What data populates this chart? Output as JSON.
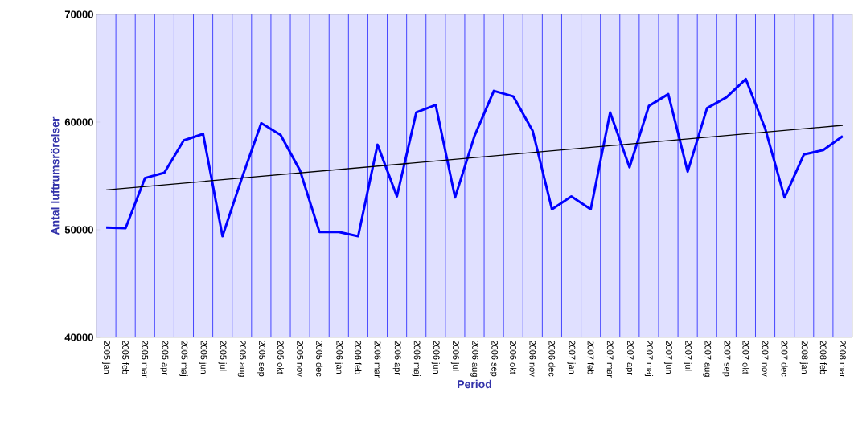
{
  "chart_data": {
    "type": "line",
    "xlabel": "Period",
    "ylabel": "Antal luftrumsrörelser",
    "categories": [
      "2005 jan",
      "2005 feb",
      "2005 mar",
      "2005 apr",
      "2005 maj",
      "2005 jun",
      "2005 jul",
      "2005 aug",
      "2005 sep",
      "2005 okt",
      "2005 nov",
      "2005 dec",
      "2006 jan",
      "2006 feb",
      "2006 mar",
      "2006 apr",
      "2006 maj",
      "2006 jun",
      "2006 jul",
      "2006 aug",
      "2006 sep",
      "2006 okt",
      "2006 nov",
      "2006 dec",
      "2007 jan",
      "2007 feb",
      "2007 mar",
      "2007 apr",
      "2007 maj",
      "2007 jun",
      "2007 jul",
      "2007 aug",
      "2007 sep",
      "2007 okt",
      "2007 nov",
      "2007 dec",
      "2008 jan",
      "2008 feb",
      "2008 mar"
    ],
    "series": [
      {
        "color": "#0000ff",
        "values": [
          50200,
          50150,
          54800,
          55300,
          58300,
          58900,
          49400,
          54800,
          59900,
          58800,
          55500,
          49800,
          49800,
          49400,
          57900,
          53100,
          60900,
          61600,
          53000,
          58700,
          62900,
          62400,
          59200,
          51900,
          53100,
          51900,
          60900,
          55800,
          61500,
          62600,
          55400,
          61300,
          62300,
          64000,
          59400,
          53000,
          57000,
          57400,
          58700
        ]
      },
      {
        "color": "#000000",
        "x": [
          "2005 jan",
          "2008 mar"
        ],
        "values": [
          53700,
          59700
        ]
      }
    ],
    "ylim": [
      40000,
      70000
    ],
    "yticks": [
      40000,
      50000,
      60000,
      70000
    ],
    "grid": "x",
    "marker": "none",
    "line_style": "solid"
  }
}
